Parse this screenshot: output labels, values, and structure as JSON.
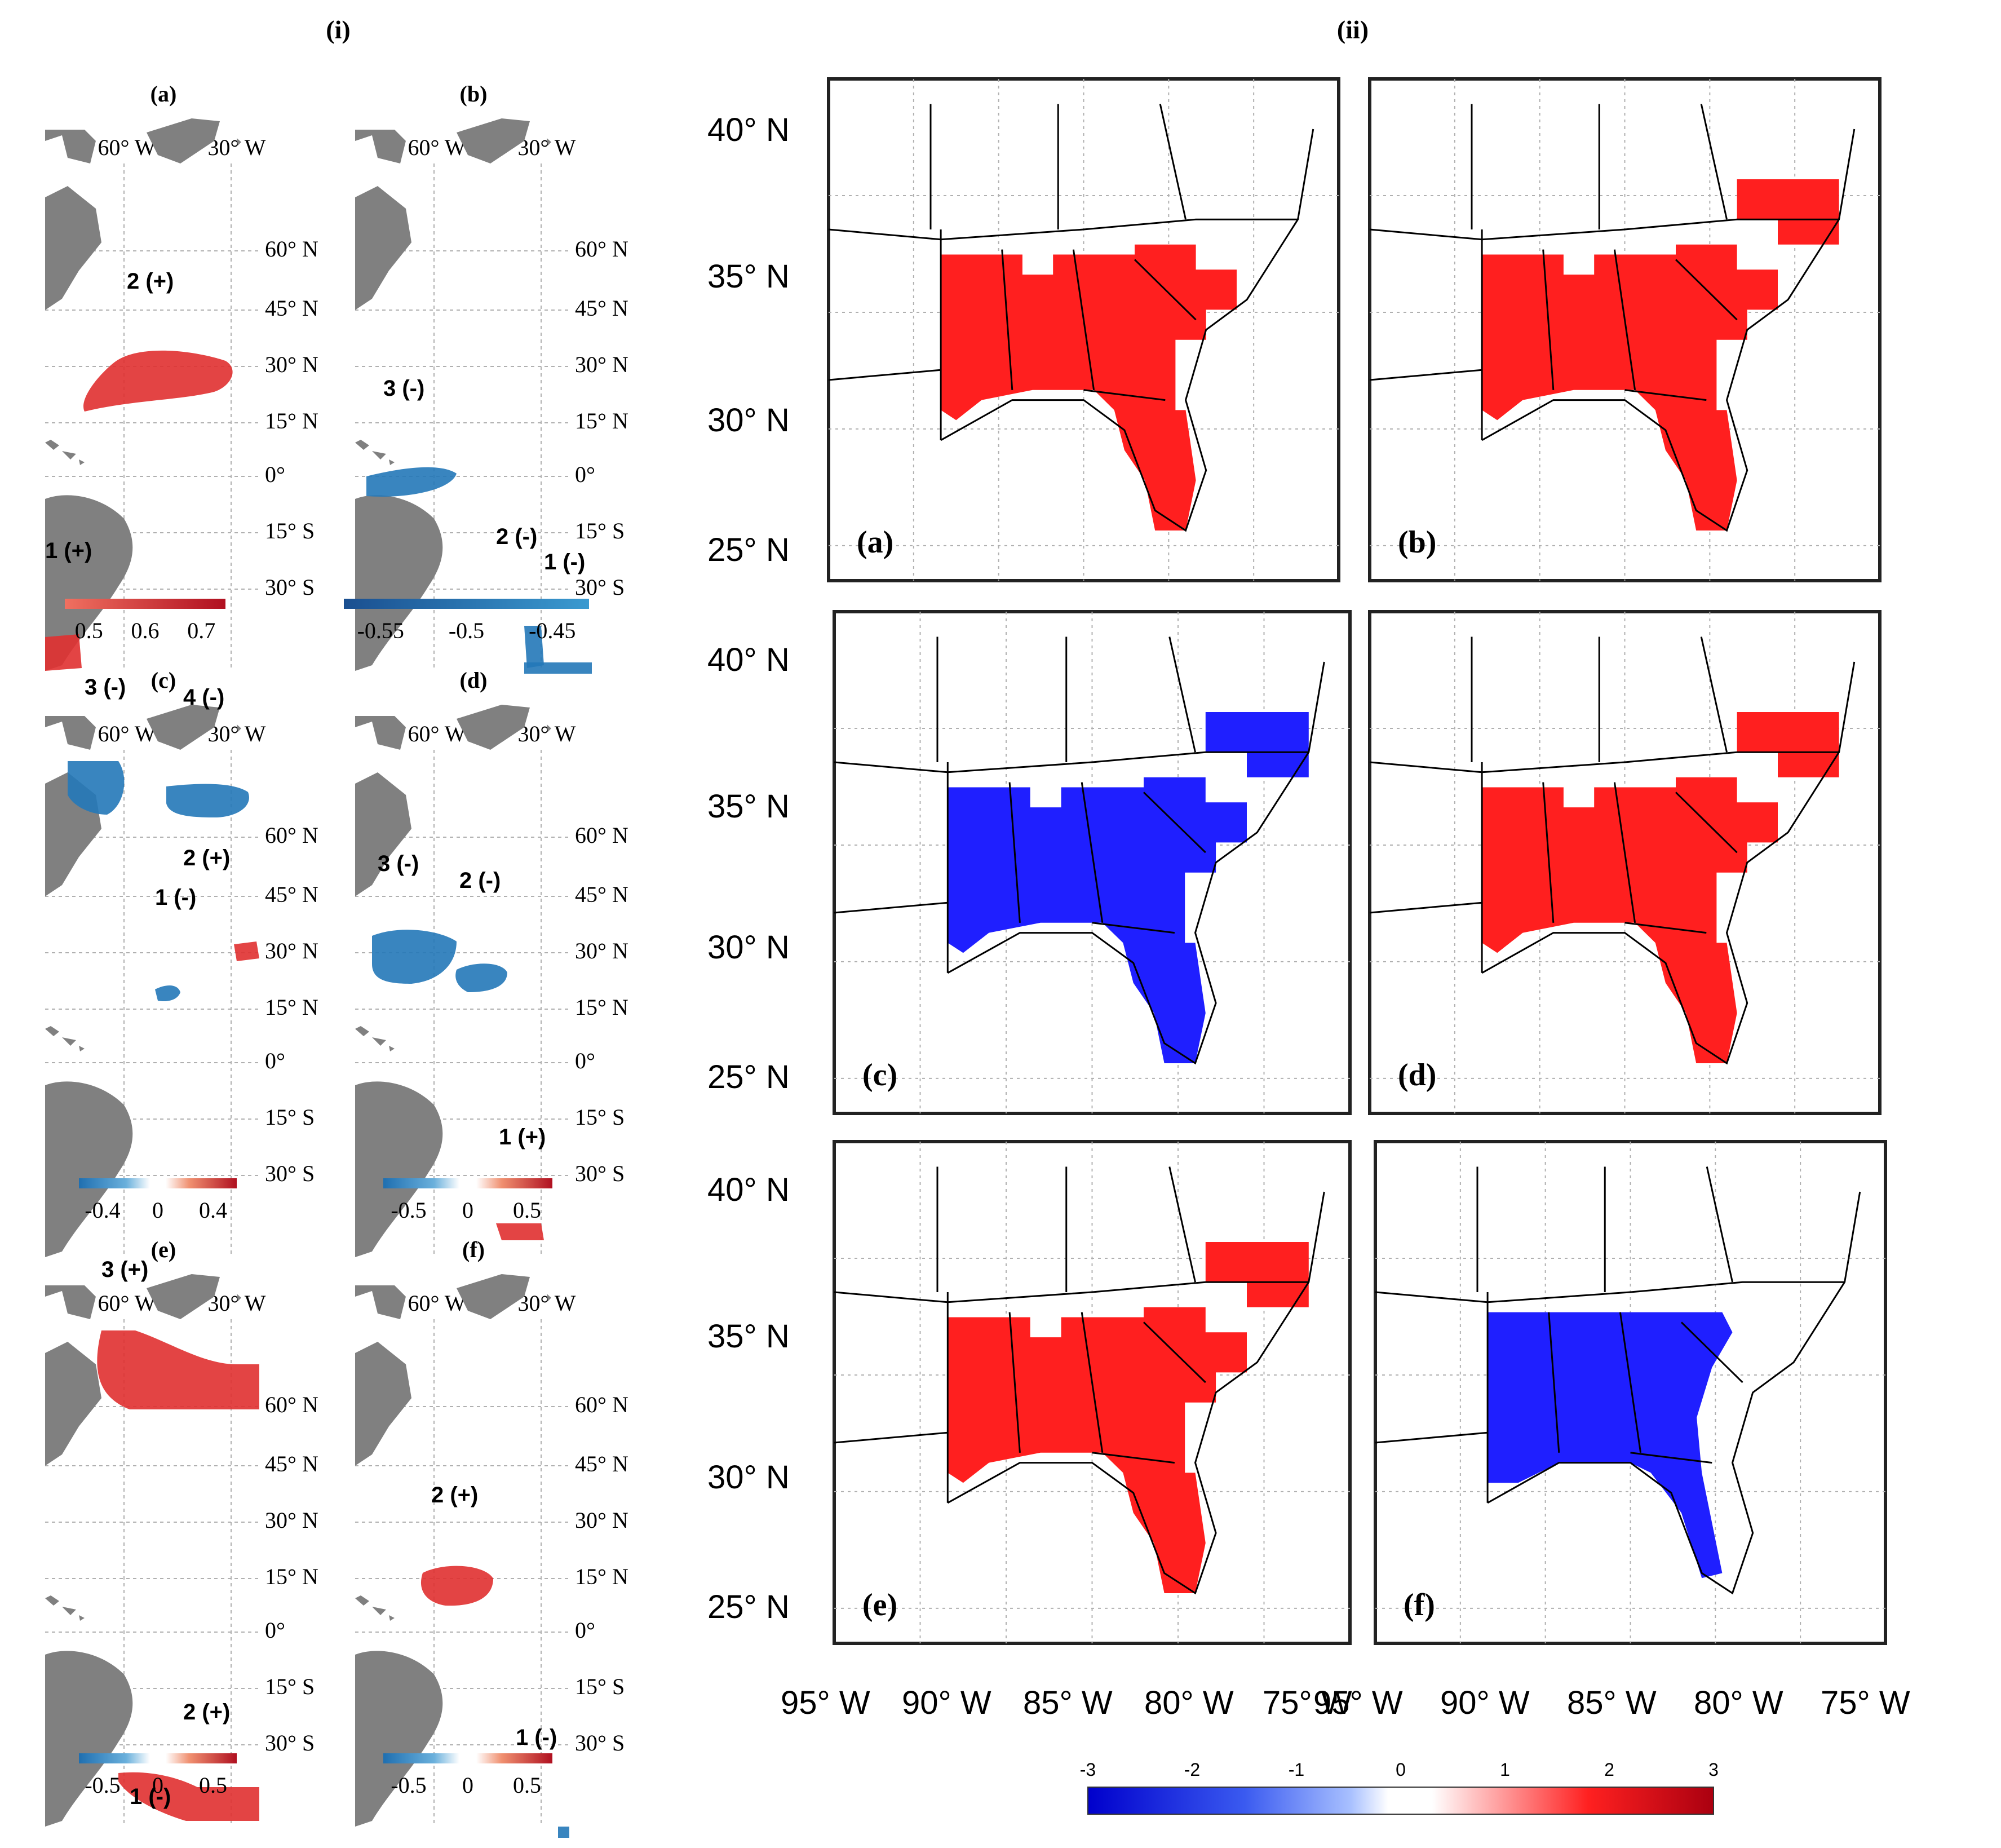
{
  "section_i": {
    "label": "(i)"
  },
  "section_ii": {
    "label": "(ii)"
  },
  "colors": {
    "land": "#808080",
    "red": "#ff1f1f",
    "blue": "#1f1fff",
    "frame": "#222222",
    "grid": "#b0b0b0"
  },
  "left_lon_ticks": [
    "60° W",
    "30° W"
  ],
  "left_lat_ticks": [
    "60° N",
    "45° N",
    "30° N",
    "15° N",
    "0°",
    "15° S",
    "30° S"
  ],
  "left_panels": [
    {
      "label": "(a)",
      "colorbar": {
        "ticks": [
          "0.5",
          "0.6",
          "0.7"
        ],
        "type": "red"
      },
      "regions": [
        {
          "label": "2 (+)",
          "sign": "+"
        },
        {
          "label": "1 (+)",
          "sign": "+"
        }
      ]
    },
    {
      "label": "(b)",
      "colorbar": {
        "ticks": [
          "-0.55",
          "-0.5",
          "-0.45"
        ],
        "type": "blue"
      },
      "regions": [
        {
          "label": "3 (-)",
          "sign": "-"
        },
        {
          "label": "2 (-)",
          "sign": "-"
        },
        {
          "label": "1 (-)",
          "sign": "-"
        }
      ]
    },
    {
      "label": "(c)",
      "colorbar": {
        "ticks": [
          "-0.4",
          "0",
          "0.4"
        ],
        "type": "div"
      },
      "regions": [
        {
          "label": "3 (-)",
          "sign": "-"
        },
        {
          "label": "4 (-)",
          "sign": "-"
        },
        {
          "label": "2 (+)",
          "sign": "+"
        },
        {
          "label": "1 (-)",
          "sign": "-"
        }
      ]
    },
    {
      "label": "(d)",
      "colorbar": {
        "ticks": [
          "-0.5",
          "0",
          "0.5"
        ],
        "type": "div"
      },
      "regions": [
        {
          "label": "3 (-)",
          "sign": "-"
        },
        {
          "label": "2 (-)",
          "sign": "-"
        },
        {
          "label": "1 (+)",
          "sign": "+"
        }
      ]
    },
    {
      "label": "(e)",
      "colorbar": {
        "ticks": [
          "-0.5",
          "0",
          "0.5"
        ],
        "type": "div"
      },
      "regions": [
        {
          "label": "3 (+)",
          "sign": "+"
        },
        {
          "label": "2 (+)",
          "sign": "+"
        },
        {
          "label": "1 (-)",
          "sign": "-"
        }
      ]
    },
    {
      "label": "(f)",
      "colorbar": {
        "ticks": [
          "-0.5",
          "0",
          "0.5"
        ],
        "type": "div"
      },
      "regions": [
        {
          "label": "2 (+)",
          "sign": "+"
        },
        {
          "label": "1 (-)",
          "sign": "-"
        }
      ]
    }
  ],
  "right_lat_ticks": [
    "40° N",
    "35° N",
    "30° N",
    "25° N"
  ],
  "right_lon_ticks": [
    "95° W",
    "90° W",
    "85° W",
    "80° W",
    "75° W"
  ],
  "right_panels": [
    {
      "label": "(a)",
      "sign": "+"
    },
    {
      "label": "(b)",
      "sign": "+"
    },
    {
      "label": "(c)",
      "sign": "-"
    },
    {
      "label": "(d)",
      "sign": "+"
    },
    {
      "label": "(e)",
      "sign": "+"
    },
    {
      "label": "(f)",
      "sign": "-"
    }
  ],
  "bottom_colorbar": {
    "ticks": [
      "-3",
      "-2",
      "-1",
      "0",
      "1",
      "2",
      "3"
    ]
  }
}
